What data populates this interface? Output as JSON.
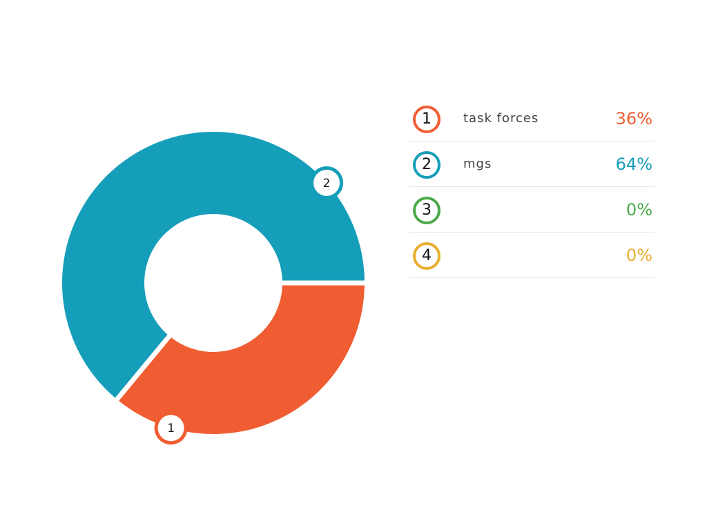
{
  "chart_data": {
    "type": "pie",
    "variant": "donut",
    "series": [
      {
        "index": "1",
        "name": "task forces",
        "value": 36,
        "value_label": "36%",
        "color": "#f05d32"
      },
      {
        "index": "2",
        "name": "mgs",
        "value": 64,
        "value_label": "64%",
        "color": "#159eb9"
      },
      {
        "index": "3",
        "name": "",
        "value": 0,
        "value_label": "0%",
        "color": "#4aa84a"
      },
      {
        "index": "4",
        "name": "",
        "value": 0,
        "value_label": "0%",
        "color": "#e9ae30"
      }
    ],
    "legend_position": "right"
  }
}
